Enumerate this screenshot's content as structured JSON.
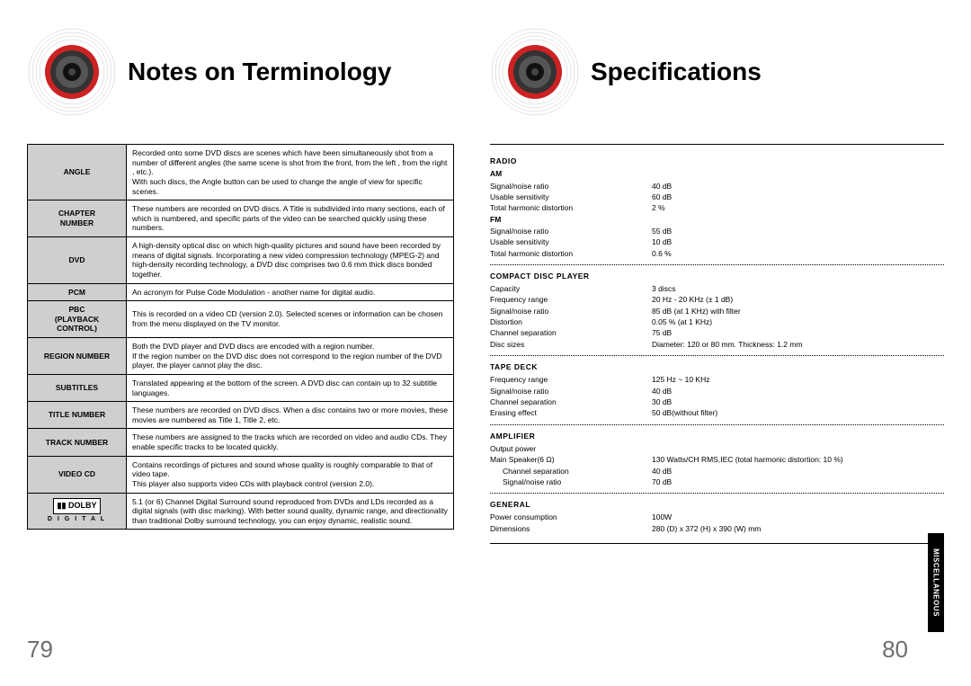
{
  "left": {
    "title": "Notes on Terminology",
    "page_num": "79",
    "terms": [
      {
        "k": "ANGLE",
        "v": "Recorded onto some DVD discs are scenes which have been simultaneously shot from a number of different angles (the same scene is shot from the front, from the left , from the right , etc.).\nWith such discs, the Angle button can be used to change the angle of view for specific scenes."
      },
      {
        "k": "CHAPTER\nNUMBER",
        "v": "These numbers are recorded on DVD discs. A Title is subdivided into many sections, each of which is numbered, and specific parts of the video can be searched quickly using these numbers."
      },
      {
        "k": "DVD",
        "v": "A high-density optical disc on which high-quality pictures and sound have been recorded by means of digital signals. Incorporating a new video compression technology (MPEG-2) and high-density recording technology, a DVD disc comprises  two 0.6 mm thick discs bonded together."
      },
      {
        "k": "PCM",
        "v": "An acronym for Pulse Code Modulation - another name for digital audio."
      },
      {
        "k": "PBC\n(PLAYBACK\nCONTROL)",
        "v": "This is recorded on a video CD (version 2.0). Selected scenes or information can be chosen from the menu displayed on the TV monitor."
      },
      {
        "k": "REGION NUMBER",
        "v": "Both the DVD player and DVD discs are encoded with a region number.\nIf the region number on the DVD disc does not correspond to the region number of the DVD player, the player cannot play the disc."
      },
      {
        "k": "SUBTITLES",
        "v": "Translated appearing at the bottom of the screen. A DVD disc can contain up to 32 subtitle languages."
      },
      {
        "k": "TITLE NUMBER",
        "v": "These numbers are recorded on DVD discs.  When a disc contains two or more movies, these movies are numbered as Title 1, Title 2, etc."
      },
      {
        "k": "TRACK NUMBER",
        "v": "These numbers are assigned to the tracks which are recorded on video and audio CDs. They enable specific tracks to be located quickly."
      },
      {
        "k": "VIDEO CD",
        "v": "Contains recordings of pictures and sound whose quality is roughly comparable to that of video tape.\nThis player also supports video CDs with playback control (version 2.0)."
      },
      {
        "k": "DOLBY",
        "ksub": "D I G I T A L",
        "v": "5.1 (or 6) Channel Digital Surround sound reproduced from DVDs and LDs recorded as a digital signals (with  disc marking). With better sound quality, dynamic range, and directionality than traditional Dolby surround technology, you can enjoy dynamic, realistic sound."
      }
    ]
  },
  "right": {
    "title": "Specifications",
    "page_num": "80",
    "side_tab": "MISCELLANEOUS",
    "sections": [
      {
        "head": "RADIO",
        "groups": [
          {
            "sub": "AM",
            "rows": [
              {
                "lab": "Signal/noise ratio",
                "val": "40 dB"
              },
              {
                "lab": "Usable sensitivity",
                "val": "60 dB"
              },
              {
                "lab": "Total harmonic distortion",
                "val": "2 %"
              }
            ]
          },
          {
            "sub": "FM",
            "rows": [
              {
                "lab": "Signal/noise ratio",
                "val": "55 dB"
              },
              {
                "lab": "Usable sensitivity",
                "val": "10 dB"
              },
              {
                "lab": "Total harmonic distortion",
                "val": "0.6 %"
              }
            ]
          }
        ]
      },
      {
        "head": "COMPACT DISC PLAYER",
        "groups": [
          {
            "rows": [
              {
                "lab": "Capacity",
                "val": "3 discs"
              },
              {
                "lab": "Frequency range",
                "val": "20 Hz - 20 KHz (± 1 dB)"
              },
              {
                "lab": "Signal/noise ratio",
                "val": "85 dB (at 1 KHz) with filter"
              },
              {
                "lab": "Distortion",
                "val": "0.05 % (at 1 KHz)"
              },
              {
                "lab": "Channel separation",
                "val": "75 dB"
              },
              {
                "lab": "Disc sizes",
                "val": "Diameter: 120 or 80 mm. Thickness: 1.2 mm"
              }
            ]
          }
        ]
      },
      {
        "head": "TAPE DECK",
        "groups": [
          {
            "rows": [
              {
                "lab": "Frequency range",
                "val": "125 Hz ~ 10 KHz"
              },
              {
                "lab": "Signal/noise ratio",
                "val": "40 dB"
              },
              {
                "lab": "Channel separation",
                "val": "30 dB"
              },
              {
                "lab": "Erasing effect",
                "val": "50 dB(without filter)"
              }
            ]
          }
        ]
      },
      {
        "head": "AMPLIFIER",
        "groups": [
          {
            "rows": [
              {
                "lab": "Output power",
                "val": ""
              },
              {
                "lab": "Main Speaker(6 Ω)",
                "val": "130 Watts/CH RMS,IEC (total harmonic distortion: 10 %)"
              },
              {
                "lab": "Channel separation",
                "val": "40 dB",
                "indent": true
              },
              {
                "lab": "Signal/noise ratio",
                "val": "70 dB",
                "indent": true
              }
            ]
          }
        ]
      },
      {
        "head": "GENERAL",
        "groups": [
          {
            "rows": [
              {
                "lab": "Power consumption",
                "val": "100W"
              },
              {
                "lab": "Dimensions",
                "val": "280 (D) x 372 (H) x 390 (W)  mm"
              }
            ]
          }
        ]
      }
    ]
  }
}
